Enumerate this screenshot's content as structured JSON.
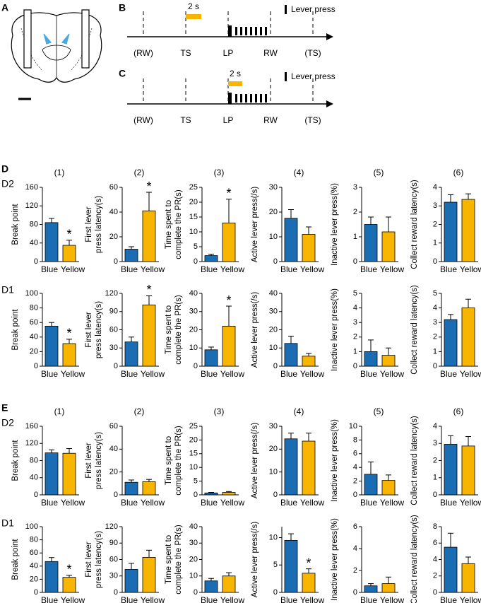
{
  "figure": {
    "panel_labels": [
      "A",
      "B",
      "C",
      "D",
      "E"
    ],
    "column_labels": [
      "(1)",
      "(2)",
      "(3)",
      "(4)",
      "(5)",
      "(6)"
    ],
    "row_labels": [
      "D2",
      "D1"
    ],
    "timeline_b": {
      "events": [
        "(RW)",
        "TS",
        "LP",
        "RW",
        "(TS)"
      ],
      "duration": "2 s",
      "legend": "Lever press"
    },
    "timeline_c": {
      "events": [
        "(RW)",
        "TS",
        "LP",
        "RW",
        "(TS)"
      ],
      "duration": "2 s",
      "legend": "Lever press"
    }
  },
  "chart_data": [
    {
      "type": "bar",
      "ylabel": [
        "Break point"
      ],
      "categories": [
        "Blue",
        "Yellow"
      ],
      "values": [
        84,
        35
      ],
      "errors": [
        9,
        11
      ],
      "colors": [
        "#1a6db3",
        "#f7b500"
      ],
      "ylim": [
        0,
        160
      ],
      "yticks": [
        0,
        40,
        80,
        120,
        160
      ],
      "annotation": "*"
    },
    {
      "type": "bar",
      "ylabel": [
        "First lever",
        "press latency(s)"
      ],
      "categories": [
        "Blue",
        "Yellow"
      ],
      "values": [
        10,
        41
      ],
      "errors": [
        2,
        15
      ],
      "colors": [
        "#1a6db3",
        "#f7b500"
      ],
      "ylim": [
        0,
        60
      ],
      "yticks": [
        0,
        20,
        40,
        60
      ],
      "annotation": "*"
    },
    {
      "type": "bar",
      "ylabel": [
        "Time spent to",
        "complete the PR(s)"
      ],
      "categories": [
        "Blue",
        "Yellow"
      ],
      "values": [
        2,
        13
      ],
      "errors": [
        0.5,
        8
      ],
      "colors": [
        "#1a6db3",
        "#f7b500"
      ],
      "ylim": [
        0,
        25
      ],
      "yticks": [
        0,
        5,
        10,
        15,
        20,
        25
      ],
      "annotation": "*"
    },
    {
      "type": "bar",
      "ylabel": [
        "Active lever press(/s)"
      ],
      "categories": [
        "Blue",
        "Yellow"
      ],
      "values": [
        17.5,
        11
      ],
      "errors": [
        3.5,
        3
      ],
      "colors": [
        "#1a6db3",
        "#f7b500"
      ],
      "ylim": [
        0,
        30
      ],
      "yticks": [
        0,
        10,
        20,
        30
      ]
    },
    {
      "type": "bar",
      "ylabel": [
        "Inactive lever press(%)"
      ],
      "categories": [
        "Blue",
        "Yellow"
      ],
      "values": [
        1.5,
        1.2
      ],
      "errors": [
        0.3,
        0.6
      ],
      "colors": [
        "#1a6db3",
        "#f7b500"
      ],
      "ylim": [
        0,
        3
      ],
      "yticks": [
        0,
        1,
        2,
        3
      ]
    },
    {
      "type": "bar",
      "ylabel": [
        "Collect reward latency(s)"
      ],
      "categories": [
        "Blue",
        "Yellow"
      ],
      "values": [
        3.2,
        3.35
      ],
      "errors": [
        0.4,
        0.3
      ],
      "colors": [
        "#1a6db3",
        "#f7b500"
      ],
      "ylim": [
        0,
        4
      ],
      "yticks": [
        0,
        1,
        2,
        3,
        4
      ]
    },
    {
      "type": "bar",
      "ylabel": [
        "Break point"
      ],
      "categories": [
        "Blue",
        "Yellow"
      ],
      "values": [
        55,
        31
      ],
      "errors": [
        5,
        6
      ],
      "colors": [
        "#1a6db3",
        "#f7b500"
      ],
      "ylim": [
        0,
        100
      ],
      "yticks": [
        0,
        20,
        40,
        60,
        80,
        100
      ],
      "annotation": "*"
    },
    {
      "type": "bar",
      "ylabel": [
        "First lever",
        "press latency(s)"
      ],
      "categories": [
        "Blue",
        "Yellow"
      ],
      "values": [
        40,
        101
      ],
      "errors": [
        8,
        15
      ],
      "colors": [
        "#1a6db3",
        "#f7b500"
      ],
      "ylim": [
        0,
        120
      ],
      "yticks": [
        0,
        30,
        60,
        90,
        120
      ],
      "annotation": "*"
    },
    {
      "type": "bar",
      "ylabel": [
        "Time spent to",
        "complete the PR(s)"
      ],
      "categories": [
        "Blue",
        "Yellow"
      ],
      "values": [
        9,
        22
      ],
      "errors": [
        1.5,
        11
      ],
      "colors": [
        "#1a6db3",
        "#f7b500"
      ],
      "ylim": [
        0,
        40
      ],
      "yticks": [
        0,
        10,
        20,
        30,
        40
      ],
      "annotation": "*"
    },
    {
      "type": "bar",
      "ylabel": [
        "Active lever press(/s)"
      ],
      "categories": [
        "Blue",
        "Yellow"
      ],
      "values": [
        12.5,
        5.5
      ],
      "errors": [
        4,
        1.5
      ],
      "colors": [
        "#1a6db3",
        "#f7b500"
      ],
      "ylim": [
        0,
        40
      ],
      "yticks": [
        0,
        10,
        20,
        30,
        40
      ]
    },
    {
      "type": "bar",
      "ylabel": [
        "Inactive lever press(%)"
      ],
      "categories": [
        "Blue",
        "Yellow"
      ],
      "values": [
        1,
        0.75
      ],
      "errors": [
        0.8,
        0.5
      ],
      "colors": [
        "#1a6db3",
        "#f7b500"
      ],
      "ylim": [
        0,
        5
      ],
      "yticks": [
        0,
        1,
        2,
        3,
        4,
        5
      ]
    },
    {
      "type": "bar",
      "ylabel": [
        "Collect reward latency(s)"
      ],
      "categories": [
        "Blue",
        "Yellow"
      ],
      "values": [
        3.2,
        4
      ],
      "errors": [
        0.35,
        0.6
      ],
      "colors": [
        "#1a6db3",
        "#f7b500"
      ],
      "ylim": [
        0,
        5
      ],
      "yticks": [
        0,
        1,
        2,
        3,
        4,
        5
      ]
    },
    {
      "type": "bar",
      "ylabel": [
        "Break point"
      ],
      "categories": [
        "Blue",
        "Yellow"
      ],
      "values": [
        98,
        97
      ],
      "errors": [
        7,
        11
      ],
      "colors": [
        "#1a6db3",
        "#f7b500"
      ],
      "ylim": [
        0,
        160
      ],
      "yticks": [
        0,
        40,
        80,
        120,
        160
      ]
    },
    {
      "type": "bar",
      "ylabel": [
        "First lever",
        "press latency(s)"
      ],
      "categories": [
        "Blue",
        "Yellow"
      ],
      "values": [
        11,
        11.5
      ],
      "errors": [
        2,
        2
      ],
      "colors": [
        "#1a6db3",
        "#f7b500"
      ],
      "ylim": [
        0,
        60
      ],
      "yticks": [
        0,
        20,
        40,
        60
      ]
    },
    {
      "type": "bar",
      "ylabel": [
        "Time spent to",
        "complete the PR(s)"
      ],
      "categories": [
        "Blue",
        "Yellow"
      ],
      "values": [
        0.7,
        0.9
      ],
      "errors": [
        0.2,
        0.3
      ],
      "colors": [
        "#1a6db3",
        "#f7b500"
      ],
      "ylim": [
        0,
        25
      ],
      "yticks": [
        0,
        5,
        10,
        15,
        20,
        25
      ]
    },
    {
      "type": "bar",
      "ylabel": [
        "Active lever press(/s)"
      ],
      "categories": [
        "Blue",
        "Yellow"
      ],
      "values": [
        24.5,
        23.5
      ],
      "errors": [
        2.5,
        3.5
      ],
      "colors": [
        "#1a6db3",
        "#f7b500"
      ],
      "ylim": [
        0,
        30
      ],
      "yticks": [
        0,
        10,
        20,
        30
      ]
    },
    {
      "type": "bar",
      "ylabel": [
        "Inactive lever press(%)"
      ],
      "categories": [
        "Blue",
        "Yellow"
      ],
      "values": [
        3,
        2.1
      ],
      "errors": [
        1.8,
        0.8
      ],
      "colors": [
        "#1a6db3",
        "#f7b500"
      ],
      "ylim": [
        0,
        10
      ],
      "yticks": [
        0,
        2,
        4,
        6,
        8,
        10
      ]
    },
    {
      "type": "bar",
      "ylabel": [
        "Collect reward latency(s)"
      ],
      "categories": [
        "Blue",
        "Yellow"
      ],
      "values": [
        2.95,
        2.85
      ],
      "errors": [
        0.5,
        0.55
      ],
      "colors": [
        "#1a6db3",
        "#f7b500"
      ],
      "ylim": [
        0,
        4
      ],
      "yticks": [
        0,
        1,
        2,
        3,
        4
      ]
    },
    {
      "type": "bar",
      "ylabel": [
        "Break point"
      ],
      "categories": [
        "Blue",
        "Yellow"
      ],
      "values": [
        47,
        23
      ],
      "errors": [
        6,
        3
      ],
      "colors": [
        "#1a6db3",
        "#f7b500"
      ],
      "ylim": [
        0,
        100
      ],
      "yticks": [
        0,
        20,
        40,
        60,
        80,
        100
      ],
      "annotation": "*"
    },
    {
      "type": "bar",
      "ylabel": [
        "First lever",
        "press latency(s)"
      ],
      "categories": [
        "Blue",
        "Yellow"
      ],
      "values": [
        42,
        64
      ],
      "errors": [
        11,
        13
      ],
      "colors": [
        "#1a6db3",
        "#f7b500"
      ],
      "ylim": [
        0,
        120
      ],
      "yticks": [
        0,
        30,
        60,
        90,
        120
      ]
    },
    {
      "type": "bar",
      "ylabel": [
        "Time spent to",
        "complete the PR(s)"
      ],
      "categories": [
        "Blue",
        "Yellow"
      ],
      "values": [
        7,
        10
      ],
      "errors": [
        1.5,
        2
      ],
      "colors": [
        "#1a6db3",
        "#f7b500"
      ],
      "ylim": [
        0,
        40
      ],
      "yticks": [
        0,
        10,
        20,
        30,
        40
      ]
    },
    {
      "type": "bar",
      "ylabel": [
        "Active lever press(/s)"
      ],
      "categories": [
        "Blue",
        "Yellow"
      ],
      "values": [
        9.5,
        3.5
      ],
      "errors": [
        1.2,
        0.8
      ],
      "colors": [
        "#1a6db3",
        "#f7b500"
      ],
      "ylim": [
        0,
        12
      ],
      "yticks": [
        0,
        5,
        10
      ],
      "annotation": "*"
    },
    {
      "type": "bar",
      "ylabel": [
        "Inactive lever press(%)"
      ],
      "categories": [
        "Blue",
        "Yellow"
      ],
      "values": [
        0.6,
        0.8
      ],
      "errors": [
        0.2,
        0.6
      ],
      "colors": [
        "#1a6db3",
        "#f7b500"
      ],
      "ylim": [
        0,
        6
      ],
      "yticks": [
        0,
        2,
        4,
        6
      ]
    },
    {
      "type": "bar",
      "ylabel": [
        "Collect reward latency(s)"
      ],
      "categories": [
        "Blue",
        "Yellow"
      ],
      "values": [
        5.5,
        3.5
      ],
      "errors": [
        1.7,
        0.8
      ],
      "colors": [
        "#1a6db3",
        "#f7b500"
      ],
      "ylim": [
        0,
        8
      ],
      "yticks": [
        0,
        2,
        4,
        6,
        8
      ]
    }
  ]
}
